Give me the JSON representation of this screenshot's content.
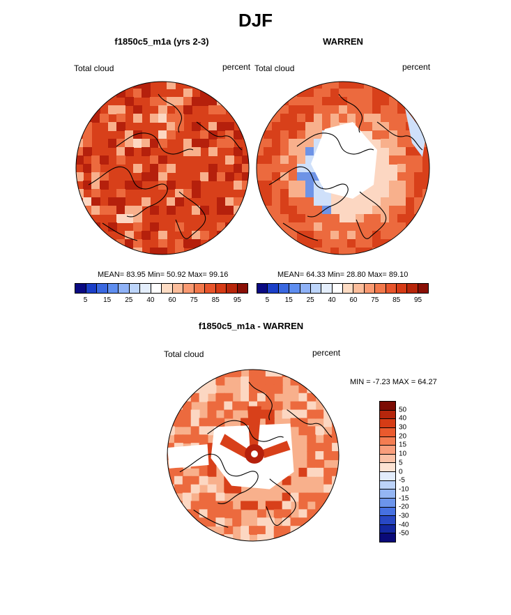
{
  "main_title": "DJF",
  "panels": [
    {
      "title": "f1850c5_m1a (yrs 2-3)",
      "left_label": "Total cloud",
      "right_label": "percent",
      "stats": "MEAN=  83.95  Min=  50.92  Max=  99.16",
      "mean": 83.95,
      "min": 50.92,
      "max": 99.16
    },
    {
      "title": "WARREN",
      "left_label": "Total cloud",
      "right_label": "percent",
      "stats": "MEAN=  64.33  Min=  28.80  Max=  89.10",
      "mean": 64.33,
      "min": 28.8,
      "max": 89.1
    },
    {
      "title": "f1850c5_m1a - WARREN",
      "left_label": "Total cloud",
      "right_label": "percent",
      "stats": "MIN =  -7.23 MAX =  64.27",
      "min": -7.23,
      "max": 64.27
    }
  ],
  "abs_colorbar": {
    "ticks": [
      "5",
      "15",
      "25",
      "40",
      "60",
      "75",
      "85",
      "95"
    ],
    "colors": [
      "#0a0a82",
      "#1b3fc8",
      "#3a68e0",
      "#5f8ef0",
      "#8fb2f7",
      "#bdd5fb",
      "#e4eefc",
      "#ffffff",
      "#fddcc4",
      "#fbbd9b",
      "#f99a72",
      "#f2784b",
      "#e8552c",
      "#d63b16",
      "#b8260a",
      "#8a1006"
    ]
  },
  "diff_colorbar": {
    "ticks": [
      "50",
      "40",
      "30",
      "20",
      "15",
      "10",
      "5",
      "0",
      "-5",
      "-10",
      "-15",
      "-20",
      "-30",
      "-40",
      "-50"
    ],
    "colors": [
      "#7c0c04",
      "#b5260c",
      "#d53c16",
      "#ea5a2e",
      "#f47d52",
      "#f99e7c",
      "#fbc1a6",
      "#fde3d3",
      "#e2ecfb",
      "#bcd3f9",
      "#94b6f4",
      "#6c95ec",
      "#4671e2",
      "#2848c4",
      "#1428a0",
      "#0a0a78"
    ]
  },
  "map_colors": {
    "deep_red": "#b5200c",
    "red": "#d8401a",
    "orange": "#ec6a3e",
    "light_orange": "#f8b08c",
    "pale": "#fcd7c2",
    "pale_blue": "#cfe0fa",
    "blue": "#6e93e6",
    "white": "#ffffff",
    "coast": "#000000"
  }
}
